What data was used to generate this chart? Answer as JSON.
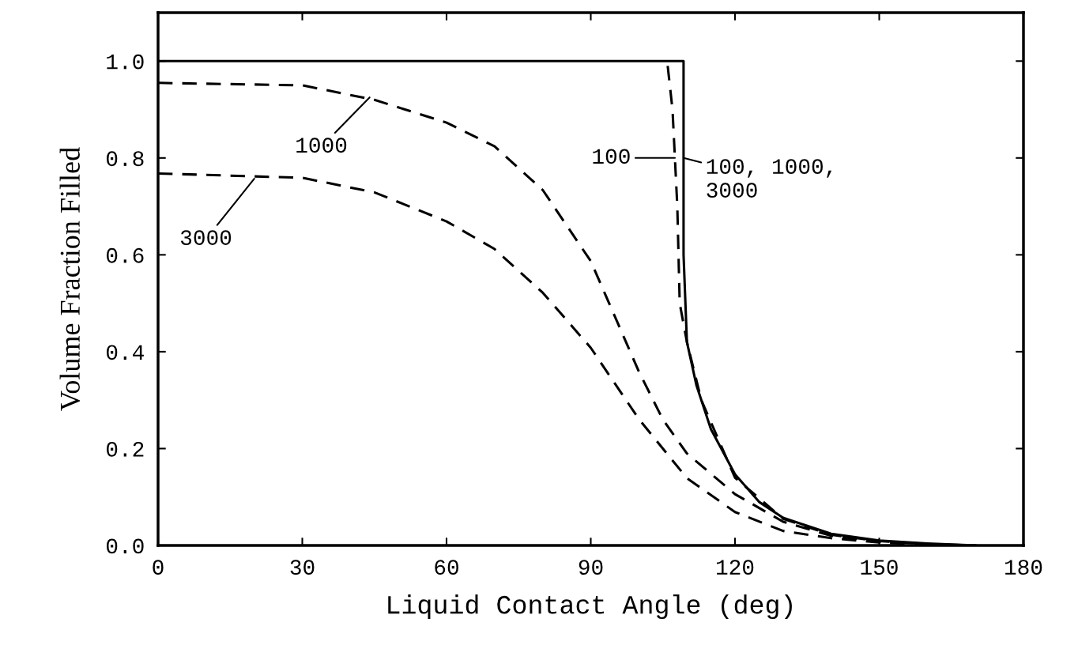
{
  "chart_data": {
    "type": "line",
    "xlabel": "Liquid Contact Angle (deg)",
    "ylabel": "Volume Fraction Filled",
    "xlim": [
      0,
      180
    ],
    "ylim": [
      0,
      1.1
    ],
    "xticks": [
      0,
      30,
      60,
      90,
      120,
      150,
      180
    ],
    "yticks": [
      {
        "value": 0,
        "label": "0.0"
      },
      {
        "value": 0.2,
        "label": "0.2"
      },
      {
        "value": 0.4,
        "label": "0.4"
      },
      {
        "value": 0.6,
        "label": "0.6"
      },
      {
        "value": 0.8,
        "label": "0.8"
      },
      {
        "value": 1.0,
        "label": "1.0"
      }
    ],
    "grid": false,
    "legend": false,
    "marker": "none",
    "series": [
      {
        "color": "#000000",
        "line_style": "solid",
        "x": [
          0,
          109.3,
          109.3,
          110,
          112,
          115,
          120,
          125,
          130,
          140,
          150,
          160,
          170
        ],
        "values": [
          1.0,
          1.0,
          0.6,
          0.42,
          0.33,
          0.24,
          0.147,
          0.09,
          0.057,
          0.024,
          0.01,
          0.004,
          0.0
        ]
      },
      {
        "color": "#000000",
        "line_style": "dashed",
        "x": [
          106,
          107,
          108,
          108.5,
          110,
          113,
          120,
          130,
          140,
          150,
          160,
          170
        ],
        "values": [
          0.99,
          0.9,
          0.7,
          0.5,
          0.42,
          0.3,
          0.14,
          0.055,
          0.022,
          0.009,
          0.003,
          0.0
        ]
      },
      {
        "color": "#000000",
        "line_style": "dashed",
        "x": [
          0,
          30,
          45,
          60,
          70,
          80,
          90,
          95,
          100,
          105,
          110,
          120,
          130,
          140,
          150,
          160
        ],
        "values": [
          0.955,
          0.95,
          0.92,
          0.873,
          0.824,
          0.734,
          0.587,
          0.473,
          0.359,
          0.26,
          0.19,
          0.106,
          0.049,
          0.02,
          0.008,
          0.003
        ]
      },
      {
        "color": "#000000",
        "line_style": "dashed",
        "x": [
          0,
          30,
          45,
          60,
          70,
          80,
          90,
          100,
          110,
          120,
          130,
          140,
          150,
          160
        ],
        "values": [
          0.768,
          0.759,
          0.729,
          0.669,
          0.612,
          0.522,
          0.408,
          0.261,
          0.139,
          0.069,
          0.03,
          0.015,
          0.006,
          0.002
        ]
      }
    ],
    "annotations": [
      {
        "text": "1000",
        "x": 44,
        "y": 0.925
      },
      {
        "text": "3000",
        "x": 20,
        "y": 0.757
      },
      {
        "text": "100",
        "x": 107.5,
        "y": 0.8
      },
      {
        "text": "100, 1000,\n3000",
        "x": 109.3,
        "y": 0.8
      }
    ]
  }
}
